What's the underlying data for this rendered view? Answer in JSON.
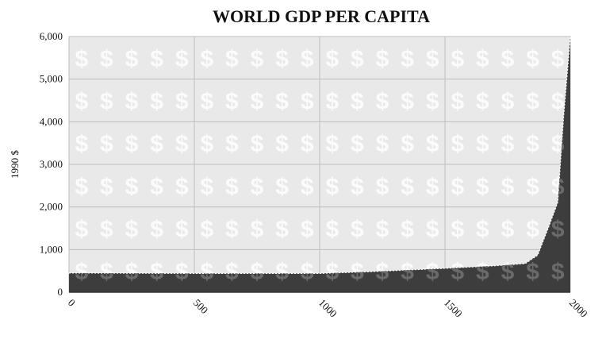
{
  "chart_data": {
    "type": "area",
    "title": "WORLD GDP PER CAPITA",
    "xlabel": "",
    "ylabel": "1990 $",
    "xlim": [
      0,
      2000
    ],
    "ylim": [
      0,
      6000
    ],
    "x_ticks": [
      "0",
      "500",
      "1000",
      "1500",
      "2000"
    ],
    "y_ticks": [
      "0",
      "1,000",
      "2,000",
      "3,000",
      "4,000",
      "5,000",
      "6,000"
    ],
    "grid": true,
    "background_pattern": "$",
    "colors": {
      "area": "#3d3d3d",
      "plot_background": "#e9e9e9",
      "grid": "#bdbdbd",
      "pattern": "#ffffff"
    },
    "series": [
      {
        "x": [
          0,
          500,
          1000,
          1200,
          1500,
          1700,
          1820,
          1870,
          1913,
          1950,
          1973,
          2000
        ],
        "values": [
          450,
          440,
          440,
          480,
          560,
          620,
          670,
          870,
          1520,
          2110,
          4090,
          6000
        ]
      }
    ]
  }
}
